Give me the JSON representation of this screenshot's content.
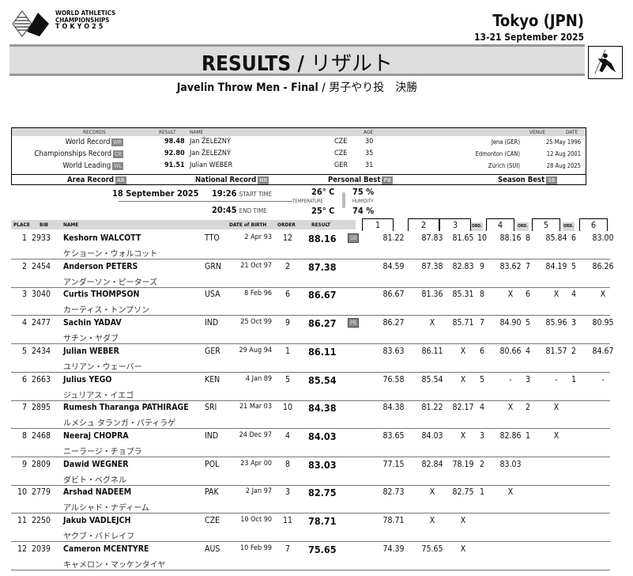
{
  "header": {
    "logo_lines": [
      "WORLD ATHLETICS",
      "CHAMPIONSHIPS",
      "TOKYO25"
    ],
    "city": "Tokyo (JPN)",
    "dates": "13-21 September 2025",
    "title": "RESULTS /",
    "title_jp": "リザルト",
    "event": "Javelin Throw Men - Final /",
    "event_jp": "男子やり投　決勝",
    "pictogram": "javelin-thrower-icon"
  },
  "records": {
    "headers": {
      "records": "RECORDS",
      "result": "RESULT",
      "name": "NAME",
      "age": "AGE",
      "venue": "VENUE",
      "date": "DATE"
    },
    "rows": [
      {
        "label": "World Record",
        "code": "WR",
        "result": "98.48",
        "name": "Jan ŽELEZNÝ",
        "country": "CZE",
        "age": "30",
        "venue": "Jena (GER)",
        "date": "25 May 1996"
      },
      {
        "label": "Championships Record",
        "code": "CR",
        "result": "92.80",
        "name": "Jan ŽELEZNÝ",
        "country": "CZE",
        "age": "35",
        "venue": "Edmonton (CAN)",
        "date": "12 Aug 2001"
      },
      {
        "label": "World Leading",
        "code": "WL",
        "result": "91.51",
        "name": "Julian WEBER",
        "country": "GER",
        "age": "31",
        "venue": "Zürich (SUI)",
        "date": "28 Aug 2025"
      }
    ],
    "legend": [
      {
        "label": "Area Record",
        "code": "AR"
      },
      {
        "label": "National Record",
        "code": "NR"
      },
      {
        "label": "Personal Best",
        "code": "PB"
      },
      {
        "label": "Season Best",
        "code": "SB"
      }
    ]
  },
  "conditions": {
    "date": "18 September  2025",
    "start": "19:26",
    "start_label": "START TIME",
    "end": "20:45",
    "end_label": "END TIME",
    "temp_start": "26° C",
    "temp_end": "25° C",
    "temp_label": "TEMPERATURE",
    "hum_start": "75 %",
    "hum_end": "74 %",
    "hum_label": "HUMIDITY"
  },
  "results": {
    "headers": {
      "place": "PLACE",
      "bib": "BIB",
      "name": "NAME",
      "dob": "DATE of BIRTH",
      "order": "ORDER",
      "result": "RESULT",
      "rounds": [
        "1",
        "2",
        "3",
        "4",
        "5",
        "6"
      ],
      "ord": "ORD."
    },
    "rows": [
      {
        "place": "1",
        "bib": "2933",
        "name": "Keshorn  WALCOTT",
        "jp": "ケショーン・ウォルコット",
        "nat": "TTO",
        "dob": "2 Apr 93",
        "order": "12",
        "result": "88.16",
        "badge": "SB",
        "r": [
          "81.22",
          "87.83",
          "81.65",
          "88.16",
          "85.84",
          "83.00"
        ],
        "o": [
          "10",
          "8",
          "6"
        ]
      },
      {
        "place": "2",
        "bib": "2454",
        "name": "Anderson  PETERS",
        "jp": "アンダーソン・ピーターズ",
        "nat": "GRN",
        "dob": "21 Oct 97",
        "order": "2",
        "result": "87.38",
        "badge": "",
        "r": [
          "84.59",
          "87.38",
          "82.83",
          "83.62",
          "84.19",
          "86.26"
        ],
        "o": [
          "9",
          "7",
          "5"
        ]
      },
      {
        "place": "3",
        "bib": "3040",
        "name": "Curtis  THOMPSON",
        "jp": "カーティス・トンプソン",
        "nat": "USA",
        "dob": "8 Feb 96",
        "order": "6",
        "result": "86.67",
        "badge": "",
        "r": [
          "86.67",
          "81.36",
          "85.31",
          "X",
          "X",
          "X"
        ],
        "o": [
          "8",
          "6",
          "4"
        ]
      },
      {
        "place": "4",
        "bib": "2477",
        "name": "Sachin  YADAV",
        "jp": "サチン・ヤダブ",
        "nat": "IND",
        "dob": "25 Oct 99",
        "order": "9",
        "result": "86.27",
        "badge": "PB",
        "r": [
          "86.27",
          "X",
          "85.71",
          "84.90",
          "85.96",
          "80.95"
        ],
        "o": [
          "7",
          "5",
          "3"
        ]
      },
      {
        "place": "5",
        "bib": "2434",
        "name": "Julian  WEBER",
        "jp": "ユリアン・ウェーバー",
        "nat": "GER",
        "dob": "29 Aug 94",
        "order": "1",
        "result": "86.11",
        "badge": "",
        "r": [
          "83.63",
          "86.11",
          "X",
          "80.66",
          "81.57",
          "84.67"
        ],
        "o": [
          "6",
          "4",
          "2"
        ]
      },
      {
        "place": "6",
        "bib": "2663",
        "name": "Julius  YEGO",
        "jp": "ジュリアス・イエゴ",
        "nat": "KEN",
        "dob": "4 Jan 89",
        "order": "5",
        "result": "85.54",
        "badge": "",
        "r": [
          "76.58",
          "85.54",
          "X",
          "-",
          "-",
          "-"
        ],
        "o": [
          "5",
          "3",
          "1"
        ]
      },
      {
        "place": "7",
        "bib": "2895",
        "name": "Rumesh Tharanga  PATHIRAGE",
        "jp": "ルメシュ タランガ・パティラゲ",
        "nat": "SRI",
        "dob": "21 Mar 03",
        "order": "10",
        "result": "84.38",
        "badge": "",
        "r": [
          "84.38",
          "81.22",
          "82.17",
          "X",
          "X",
          ""
        ],
        "o": [
          "4",
          "2",
          ""
        ]
      },
      {
        "place": "8",
        "bib": "2468",
        "name": "Neeraj  CHOPRA",
        "jp": "ニーラージ・チョプラ",
        "nat": "IND",
        "dob": "24 Dec 97",
        "order": "4",
        "result": "84.03",
        "badge": "",
        "r": [
          "83.65",
          "84.03",
          "X",
          "82.86",
          "X",
          ""
        ],
        "o": [
          "3",
          "1",
          ""
        ]
      },
      {
        "place": "9",
        "bib": "2809",
        "name": "Dawid  WEGNER",
        "jp": "ダビト・ベグネル",
        "nat": "POL",
        "dob": "23 Apr 00",
        "order": "8",
        "result": "83.03",
        "badge": "",
        "r": [
          "77.15",
          "82.84",
          "78.19",
          "83.03",
          "",
          ""
        ],
        "o": [
          "2",
          "",
          ""
        ]
      },
      {
        "place": "10",
        "bib": "2779",
        "name": "Arshad  NADEEM",
        "jp": "アルシャド・ナディーム",
        "nat": "PAK",
        "dob": "2 Jan 97",
        "order": "3",
        "result": "82.75",
        "badge": "",
        "r": [
          "82.73",
          "X",
          "82.75",
          "X",
          "",
          ""
        ],
        "o": [
          "1",
          "",
          ""
        ]
      },
      {
        "place": "11",
        "bib": "2250",
        "name": "Jakub  VADLEJCH",
        "jp": "ヤクブ・バドレイフ",
        "nat": "CZE",
        "dob": "10 Oct 90",
        "order": "11",
        "result": "78.71",
        "badge": "",
        "r": [
          "78.71",
          "X",
          "X",
          "",
          "",
          ""
        ],
        "o": [
          "",
          "",
          ""
        ]
      },
      {
        "place": "12",
        "bib": "2039",
        "name": "Cameron  MCENTYRE",
        "jp": "キャメロン・マッケンタイヤ",
        "nat": "AUS",
        "dob": "10 Feb 99",
        "order": "7",
        "result": "75.65",
        "badge": "",
        "r": [
          "74.39",
          "75.65",
          "X",
          "",
          "",
          ""
        ],
        "o": [
          "",
          "",
          ""
        ]
      }
    ]
  }
}
